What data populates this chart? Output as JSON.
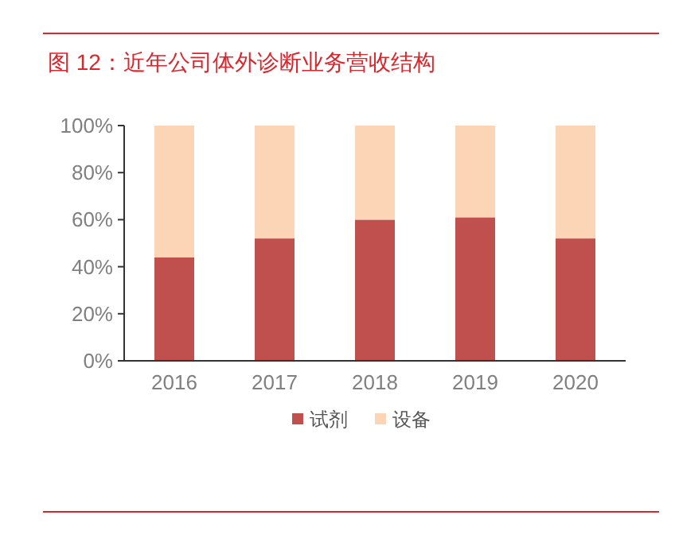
{
  "chart_data": {
    "type": "bar",
    "title": "图 12：近年公司体外诊断业务营收结构",
    "categories": [
      "2016",
      "2017",
      "2018",
      "2019",
      "2020"
    ],
    "stacked": true,
    "series": [
      {
        "name": "试剂",
        "color": "#c0504d",
        "values": [
          44,
          52,
          60,
          61,
          52
        ]
      },
      {
        "name": "设备",
        "color": "#fbd5b5",
        "values": [
          56,
          48,
          40,
          39,
          48
        ]
      }
    ],
    "ylim": [
      0,
      100
    ],
    "yticks": [
      {
        "value": 0,
        "label": "0%"
      },
      {
        "value": 20,
        "label": "20%"
      },
      {
        "value": 40,
        "label": "40%"
      },
      {
        "value": 60,
        "label": "60%"
      },
      {
        "value": 80,
        "label": "80%"
      },
      {
        "value": 100,
        "label": "100%"
      }
    ],
    "grid": false,
    "legend": "bottom"
  }
}
